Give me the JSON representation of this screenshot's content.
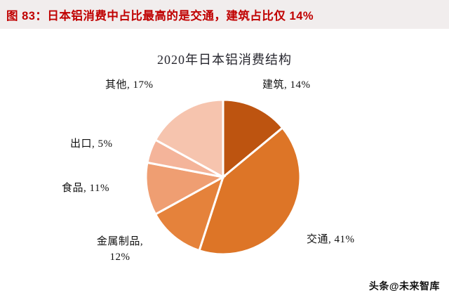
{
  "header": {
    "title": "图 83：日本铝消费中占比最高的是交通，建筑占比仅 14%"
  },
  "chart_data": {
    "type": "pie",
    "title": "2020年日本铝消费结构",
    "categories": [
      "建筑",
      "交通",
      "金属制品",
      "食品",
      "出口",
      "其他"
    ],
    "values": [
      14,
      41,
      12,
      11,
      5,
      17
    ],
    "unit": "%",
    "colors": [
      "#bd5410",
      "#dd7527",
      "#e5823b",
      "#ef9e72",
      "#f4b49a",
      "#f6c4ae"
    ],
    "labels": [
      "建筑, 14%",
      "交通, 41%",
      "金属制品, 12%",
      "食品, 11%",
      "出口, 5%",
      "其他, 17%"
    ],
    "start_angle_deg": 0,
    "direction": "clockwise",
    "legend": "none",
    "slice_border_color": "#ffffff"
  },
  "watermark": {
    "text": "头条@未来智库"
  }
}
